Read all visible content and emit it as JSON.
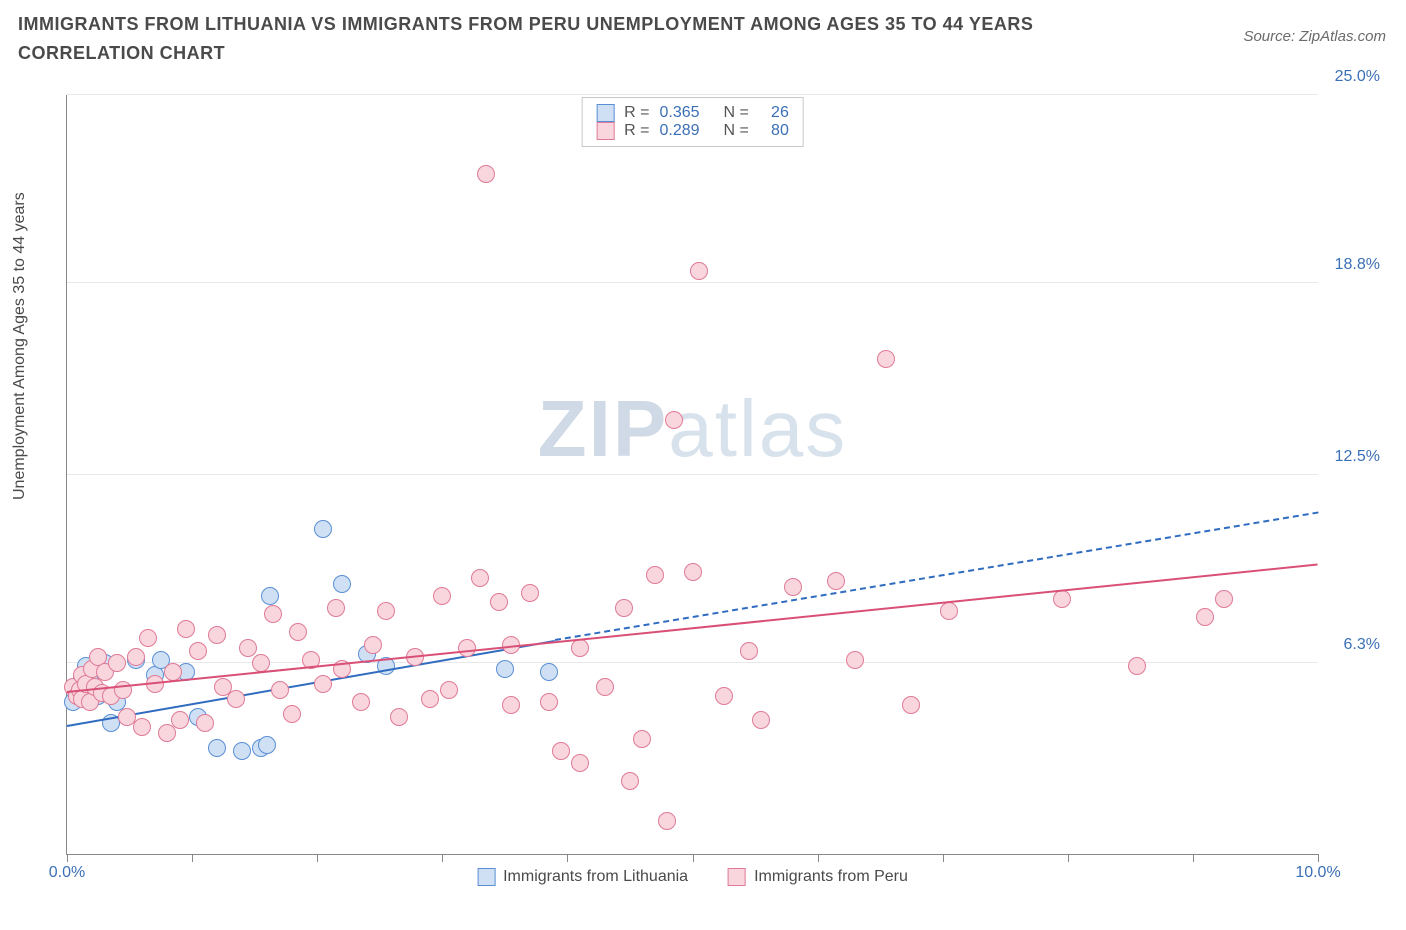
{
  "title": "IMMIGRANTS FROM LITHUANIA VS IMMIGRANTS FROM PERU UNEMPLOYMENT AMONG AGES 35 TO 44 YEARS CORRELATION CHART",
  "source": "Source: ZipAtlas.com",
  "ylabel": "Unemployment Among Ages 35 to 44 years",
  "watermark_a": "ZIP",
  "watermark_b": "atlas",
  "chart": {
    "type": "scatter",
    "xlim": [
      0,
      10
    ],
    "ylim": [
      0,
      25
    ],
    "x_ticks": [
      0,
      1,
      2,
      3,
      4,
      5,
      6,
      7,
      8,
      9,
      10
    ],
    "x_tick_labels_shown": {
      "0": "0.0%",
      "10": "10.0%"
    },
    "y_ticks": [
      6.3,
      12.5,
      18.8,
      25.0
    ],
    "y_tick_labels": [
      "6.3%",
      "12.5%",
      "18.8%",
      "25.0%"
    ],
    "background_color": "#ffffff",
    "grid_color": "#e8e8e8",
    "axis_color": "#888888",
    "marker_radius": 9,
    "marker_border_width": 1.2,
    "series": [
      {
        "name": "Immigrants from Lithuania",
        "fill": "#cfe0f4",
        "stroke": "#5a8fd6",
        "R": "0.365",
        "N": "26",
        "trend": {
          "x1": 0.0,
          "y1": 4.2,
          "x2": 3.9,
          "y2": 7.0,
          "dash_to_x": 10.0,
          "dash_to_y": 11.2,
          "color": "#2f6cc0",
          "width": 2
        },
        "points": [
          [
            0.05,
            5.0
          ],
          [
            0.08,
            5.3
          ],
          [
            0.1,
            5.6
          ],
          [
            0.12,
            5.8
          ],
          [
            0.15,
            6.2
          ],
          [
            0.18,
            5.7
          ],
          [
            0.25,
            5.2
          ],
          [
            0.3,
            6.3
          ],
          [
            0.35,
            4.3
          ],
          [
            0.4,
            5.0
          ],
          [
            0.55,
            6.4
          ],
          [
            0.7,
            5.9
          ],
          [
            0.75,
            6.4
          ],
          [
            0.95,
            6.0
          ],
          [
            1.05,
            4.5
          ],
          [
            1.2,
            3.5
          ],
          [
            1.4,
            3.4
          ],
          [
            1.55,
            3.5
          ],
          [
            1.6,
            3.6
          ],
          [
            1.62,
            8.5
          ],
          [
            2.05,
            10.7
          ],
          [
            2.2,
            8.9
          ],
          [
            2.4,
            6.6
          ],
          [
            2.55,
            6.2
          ],
          [
            3.5,
            6.1
          ],
          [
            3.85,
            6.0
          ]
        ]
      },
      {
        "name": "Immigrants from Peru",
        "fill": "#f9d6de",
        "stroke": "#e07a96",
        "R": "0.289",
        "N": "80",
        "trend": {
          "x1": 0.0,
          "y1": 5.3,
          "x2": 10.0,
          "y2": 9.5,
          "color": "#d94f76",
          "width": 2.5
        },
        "points": [
          [
            0.05,
            5.5
          ],
          [
            0.08,
            5.2
          ],
          [
            0.1,
            5.4
          ],
          [
            0.12,
            5.9
          ],
          [
            0.12,
            5.1
          ],
          [
            0.15,
            5.6
          ],
          [
            0.18,
            5.0
          ],
          [
            0.2,
            6.1
          ],
          [
            0.22,
            5.5
          ],
          [
            0.25,
            6.5
          ],
          [
            0.28,
            5.3
          ],
          [
            0.3,
            6.0
          ],
          [
            0.35,
            5.2
          ],
          [
            0.4,
            6.3
          ],
          [
            0.45,
            5.4
          ],
          [
            0.48,
            4.5
          ],
          [
            0.55,
            6.5
          ],
          [
            0.6,
            4.2
          ],
          [
            0.65,
            7.1
          ],
          [
            0.7,
            5.6
          ],
          [
            0.8,
            4.0
          ],
          [
            0.85,
            6.0
          ],
          [
            0.9,
            4.4
          ],
          [
            0.95,
            7.4
          ],
          [
            1.05,
            6.7
          ],
          [
            1.1,
            4.3
          ],
          [
            1.2,
            7.2
          ],
          [
            1.25,
            5.5
          ],
          [
            1.35,
            5.1
          ],
          [
            1.45,
            6.8
          ],
          [
            1.55,
            6.3
          ],
          [
            1.65,
            7.9
          ],
          [
            1.7,
            5.4
          ],
          [
            1.8,
            4.6
          ],
          [
            1.85,
            7.3
          ],
          [
            1.95,
            6.4
          ],
          [
            2.05,
            5.6
          ],
          [
            2.15,
            8.1
          ],
          [
            2.2,
            6.1
          ],
          [
            2.35,
            5.0
          ],
          [
            2.45,
            6.9
          ],
          [
            2.55,
            8.0
          ],
          [
            2.65,
            4.5
          ],
          [
            2.78,
            6.5
          ],
          [
            2.9,
            5.1
          ],
          [
            3.0,
            8.5
          ],
          [
            3.05,
            5.4
          ],
          [
            3.2,
            6.8
          ],
          [
            3.3,
            9.1
          ],
          [
            3.35,
            22.4
          ],
          [
            3.45,
            8.3
          ],
          [
            3.55,
            6.9
          ],
          [
            3.55,
            4.9
          ],
          [
            3.7,
            8.6
          ],
          [
            3.85,
            5.0
          ],
          [
            3.95,
            3.4
          ],
          [
            4.1,
            6.8
          ],
          [
            4.1,
            3.0
          ],
          [
            4.3,
            5.5
          ],
          [
            4.45,
            8.1
          ],
          [
            4.5,
            2.4
          ],
          [
            4.6,
            3.8
          ],
          [
            4.7,
            9.2
          ],
          [
            4.8,
            1.1
          ],
          [
            4.85,
            14.3
          ],
          [
            5.0,
            9.3
          ],
          [
            5.05,
            19.2
          ],
          [
            5.25,
            5.2
          ],
          [
            5.45,
            6.7
          ],
          [
            5.55,
            4.4
          ],
          [
            5.8,
            8.8
          ],
          [
            6.15,
            9.0
          ],
          [
            6.3,
            6.4
          ],
          [
            6.55,
            16.3
          ],
          [
            6.75,
            4.9
          ],
          [
            7.05,
            8.0
          ],
          [
            7.95,
            8.4
          ],
          [
            8.55,
            6.2
          ],
          [
            9.1,
            7.8
          ],
          [
            9.25,
            8.4
          ]
        ]
      }
    ]
  },
  "legend_bottom": [
    {
      "label": "Immigrants from Lithuania",
      "fill": "#cfe0f4",
      "stroke": "#5a8fd6"
    },
    {
      "label": "Immigrants from Peru",
      "fill": "#f9d6de",
      "stroke": "#e07a96"
    }
  ]
}
